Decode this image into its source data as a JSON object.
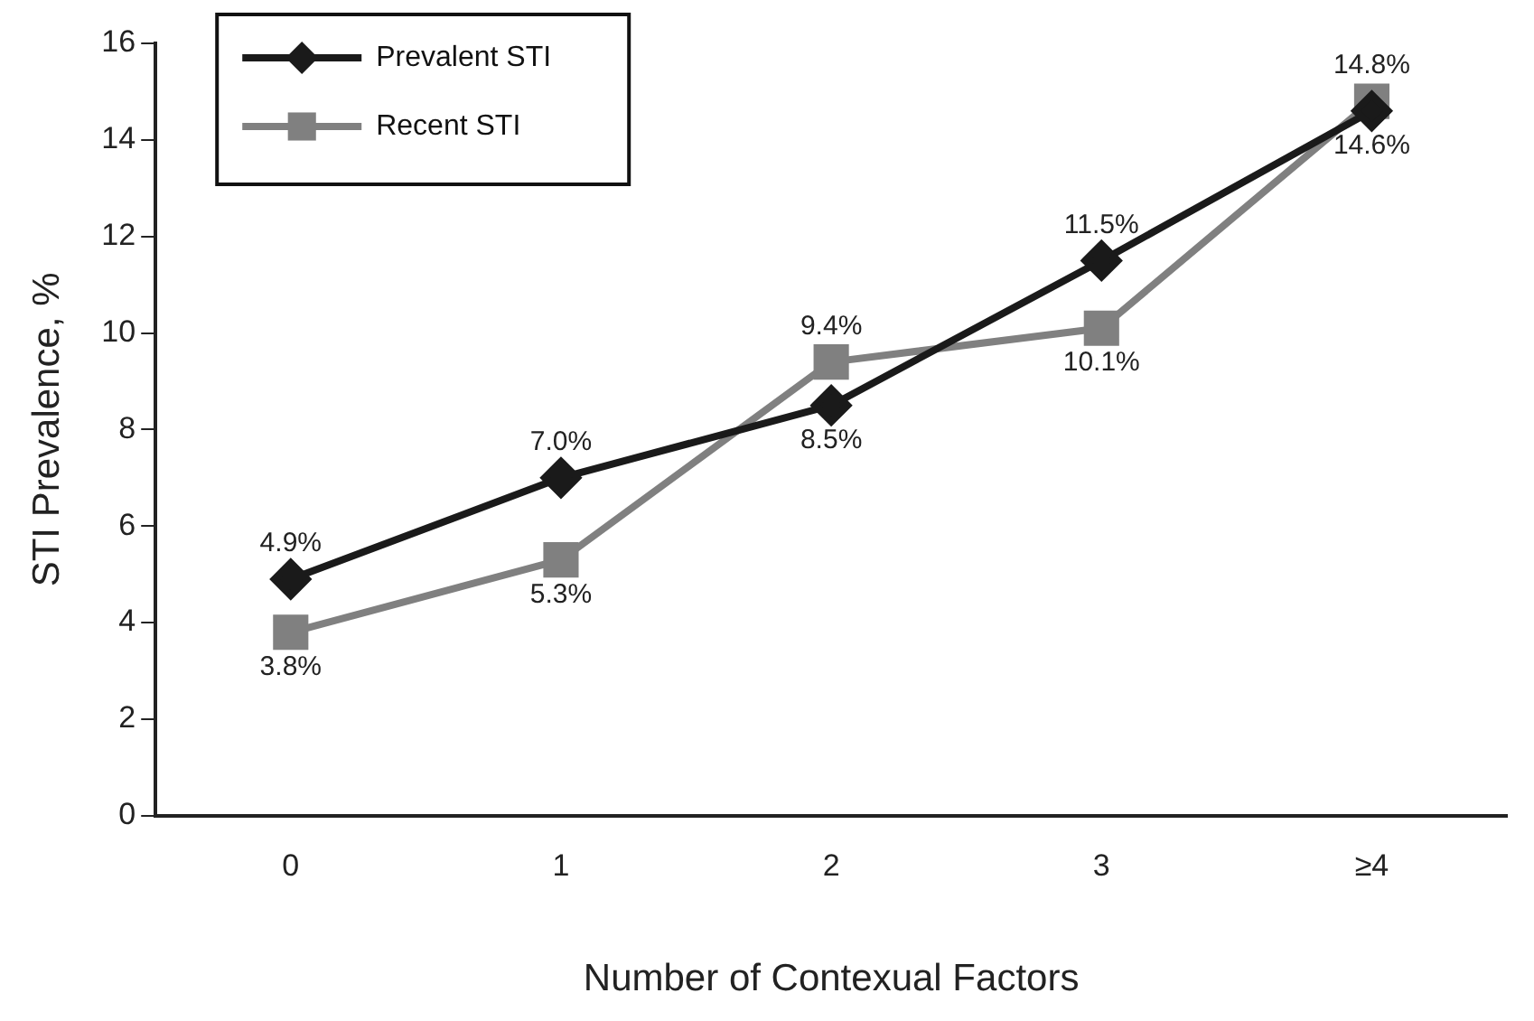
{
  "chart_data": {
    "type": "line",
    "xlabel": "Number of Contexual Factors",
    "ylabel": "STI Prevalence, %",
    "categories": [
      "0",
      "1",
      "2",
      "3",
      "≥4"
    ],
    "series": [
      {
        "name": "Prevalent STI",
        "color": "#1a1a1a",
        "marker": "diamond",
        "values": [
          4.9,
          7.0,
          8.5,
          11.5,
          14.6
        ],
        "value_labels": [
          "4.9%",
          "7.0%",
          "8.5%",
          "11.5%",
          "14.6%"
        ]
      },
      {
        "name": "Recent STI",
        "color": "#808080",
        "marker": "square",
        "values": [
          3.8,
          5.3,
          9.4,
          10.1,
          14.8
        ],
        "value_labels": [
          "3.8%",
          "5.3%",
          "9.4%",
          "10.1%",
          "14.8%"
        ]
      }
    ],
    "ylim": [
      0,
      16
    ],
    "yticks": [
      0,
      2,
      4,
      6,
      8,
      10,
      12,
      14,
      16
    ],
    "grid": false,
    "legend": "top left",
    "line_style": "solid"
  }
}
